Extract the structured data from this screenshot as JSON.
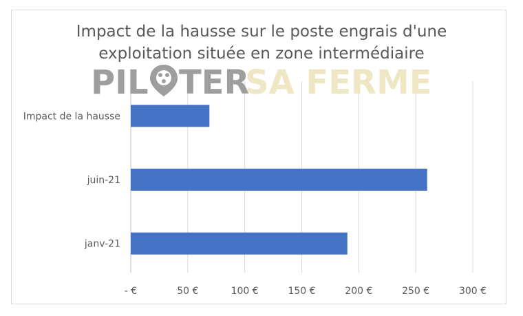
{
  "chart_data": {
    "type": "bar",
    "orientation": "horizontal",
    "title_lines": [
      "Impact de la hausse sur le poste engrais d'une",
      "exploitation située en zone intermédiaire"
    ],
    "categories": [
      "Impact de la hausse",
      "juin-21",
      "janv-21"
    ],
    "values": [
      69,
      260,
      190
    ],
    "xlim": [
      0,
      300
    ],
    "ticks": [
      0,
      50,
      100,
      150,
      200,
      250,
      300
    ],
    "tick_labels": [
      "-   €",
      "50 €",
      "100 €",
      "150 €",
      "200 €",
      "250 €",
      "300 €"
    ],
    "grid": true,
    "legend": "none",
    "bar_color": "#4472c4"
  },
  "watermark": {
    "text_left": "PIL",
    "text_mid": "TER",
    "text_right": "SA FERME",
    "color_left": "#9e9e9e",
    "color_right": "#efe7c4"
  }
}
